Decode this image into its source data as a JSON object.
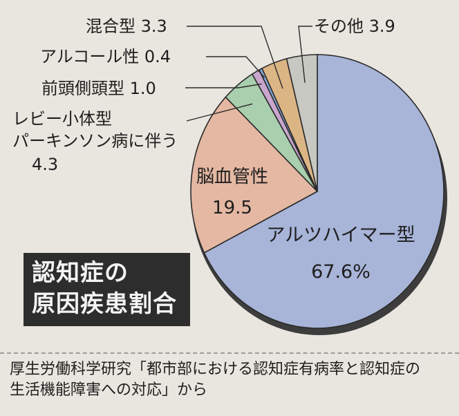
{
  "chart_data": {
    "type": "pie",
    "title_lines": [
      "認知症の",
      "原因疾患割合"
    ],
    "slices": [
      {
        "label": "アルツハイマー型",
        "value": 67.6,
        "value_text": "67.6%",
        "color": "#a8b4d8"
      },
      {
        "label": "脳血管性",
        "value": 19.5,
        "value_text": "19.5",
        "color": "#e4b8a2"
      },
      {
        "label": "レビー小体型パーキンソン病に伴う",
        "label_lines": [
          "レビー小体型",
          "パーキンソン病に伴う"
        ],
        "value": 4.3,
        "value_text": "4.3",
        "color": "#a9cfae"
      },
      {
        "label": "前頭側頭型",
        "value": 1.0,
        "value_text": "1.0",
        "color": "#c9a6cd"
      },
      {
        "label": "アルコール性",
        "value": 0.4,
        "value_text": "0.4",
        "color": "#86a9d9"
      },
      {
        "label": "混合型",
        "value": 3.3,
        "value_text": "3.3",
        "color": "#dcb585"
      },
      {
        "label": "その他",
        "value": 3.9,
        "value_text": "3.9",
        "color": "#c8c8c3"
      }
    ],
    "source_lines": [
      "厚生労働科学研究「都市部における認知症有病率と認知症の",
      "生活機能障害への対応」から"
    ]
  }
}
